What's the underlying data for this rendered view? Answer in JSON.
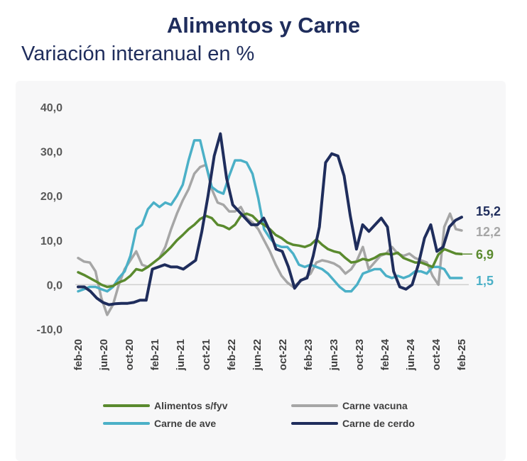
{
  "chart_data": {
    "type": "line",
    "title": "Alimentos y Carne",
    "subtitle": "Variación interanual en %",
    "ylim": [
      -10,
      40
    ],
    "yticks": [
      "40,0",
      "30,0",
      "20,0",
      "10,0",
      "0,0",
      "-10,0"
    ],
    "ytick_values": [
      40,
      30,
      20,
      10,
      0,
      -10
    ],
    "x_start": "feb-20",
    "x_end": "feb-25",
    "xticks": [
      "feb-20",
      "jun-20",
      "oct-20",
      "feb-21",
      "jun-21",
      "oct-21",
      "feb-22",
      "jun-22",
      "oct-22",
      "feb-23",
      "jun-23",
      "oct-23",
      "feb-24",
      "jun-24",
      "oct-24",
      "feb-25"
    ],
    "legend_position": "bottom",
    "series": [
      {
        "name": "Alimentos s/fyv",
        "color": "#5a8a2e",
        "end_label": "6,9",
        "values": [
          2.8,
          2.2,
          1.5,
          0.8,
          0.0,
          -0.5,
          -0.3,
          0.5,
          1.0,
          2.0,
          3.5,
          3.2,
          4.0,
          5.0,
          6.0,
          7.2,
          8.5,
          10.0,
          11.2,
          12.5,
          13.5,
          14.8,
          15.5,
          15.0,
          13.5,
          13.2,
          12.5,
          13.5,
          15.5,
          16.0,
          15.5,
          14.2,
          13.5,
          12.5,
          11.2,
          10.5,
          9.5,
          9.0,
          8.8,
          8.5,
          9.0,
          10.2,
          9.0,
          8.0,
          7.5,
          7.2,
          6.0,
          5.0,
          5.2,
          5.8,
          5.5,
          6.0,
          6.8,
          7.0,
          6.8,
          7.2,
          6.0,
          5.5,
          5.0,
          5.0,
          4.5,
          4.0,
          6.8,
          8.0,
          7.5,
          7.0,
          6.9
        ]
      },
      {
        "name": "Carne vacuna",
        "color": "#a6a6a6",
        "end_label": "12,2",
        "values": [
          6.0,
          5.2,
          5.0,
          3.0,
          -3.0,
          -6.8,
          -4.5,
          0.0,
          3.5,
          5.5,
          7.5,
          4.5,
          4.0,
          5.0,
          6.0,
          8.5,
          12.5,
          16.0,
          19.0,
          21.5,
          25.0,
          26.5,
          27.0,
          21.5,
          18.5,
          18.0,
          16.5,
          16.5,
          17.5,
          15.0,
          14.0,
          12.5,
          10.0,
          7.5,
          4.5,
          2.0,
          0.5,
          -0.5,
          0.5,
          1.5,
          2.5,
          5.0,
          5.5,
          5.2,
          4.8,
          4.0,
          2.5,
          3.5,
          5.5,
          8.5,
          3.5,
          5.0,
          6.5,
          7.0,
          8.5,
          7.0,
          6.5,
          7.0,
          6.0,
          5.5,
          5.0,
          2.0,
          0.0,
          13.0,
          16.0,
          12.5,
          12.2
        ]
      },
      {
        "name": "Carne de ave",
        "color": "#4bb0c7",
        "end_label": "1,5",
        "values": [
          -1.5,
          -1.0,
          -0.5,
          -0.5,
          -1.0,
          -1.5,
          -0.5,
          1.5,
          3.0,
          6.5,
          12.5,
          13.5,
          17.0,
          18.5,
          17.5,
          18.5,
          18.0,
          20.0,
          22.5,
          28.0,
          32.5,
          32.5,
          27.0,
          22.0,
          21.0,
          20.5,
          24.5,
          28.0,
          28.0,
          27.5,
          25.0,
          19.5,
          12.5,
          10.5,
          9.0,
          8.5,
          8.5,
          7.0,
          4.5,
          4.0,
          4.5,
          4.0,
          3.5,
          2.5,
          1.0,
          -0.5,
          -1.5,
          -1.5,
          0.0,
          2.5,
          3.0,
          3.5,
          3.5,
          2.0,
          1.5,
          2.0,
          1.5,
          2.0,
          3.0,
          3.0,
          2.5,
          4.0,
          4.0,
          3.5,
          1.5,
          1.5,
          1.5
        ]
      },
      {
        "name": "Carne de cerdo",
        "color": "#1f2d5c",
        "end_label": "15,2",
        "values": [
          -0.5,
          -0.5,
          -1.5,
          -3.0,
          -4.0,
          -4.5,
          -4.3,
          -4.2,
          -4.2,
          -4.0,
          -3.5,
          -3.5,
          3.5,
          4.0,
          4.5,
          4.0,
          4.0,
          3.5,
          4.5,
          5.5,
          12.0,
          20.0,
          29.0,
          34.0,
          24.0,
          18.0,
          16.5,
          15.0,
          13.5,
          13.5,
          15.0,
          12.0,
          8.0,
          7.5,
          4.0,
          -0.8,
          1.0,
          1.5,
          6.5,
          13.0,
          27.5,
          29.5,
          29.0,
          24.5,
          15.5,
          8.0,
          13.5,
          12.0,
          13.5,
          15.0,
          13.0,
          3.0,
          -0.5,
          -1.0,
          0.0,
          4.5,
          10.5,
          13.5,
          7.5,
          8.5,
          13.0,
          14.5,
          15.2
        ]
      }
    ]
  }
}
